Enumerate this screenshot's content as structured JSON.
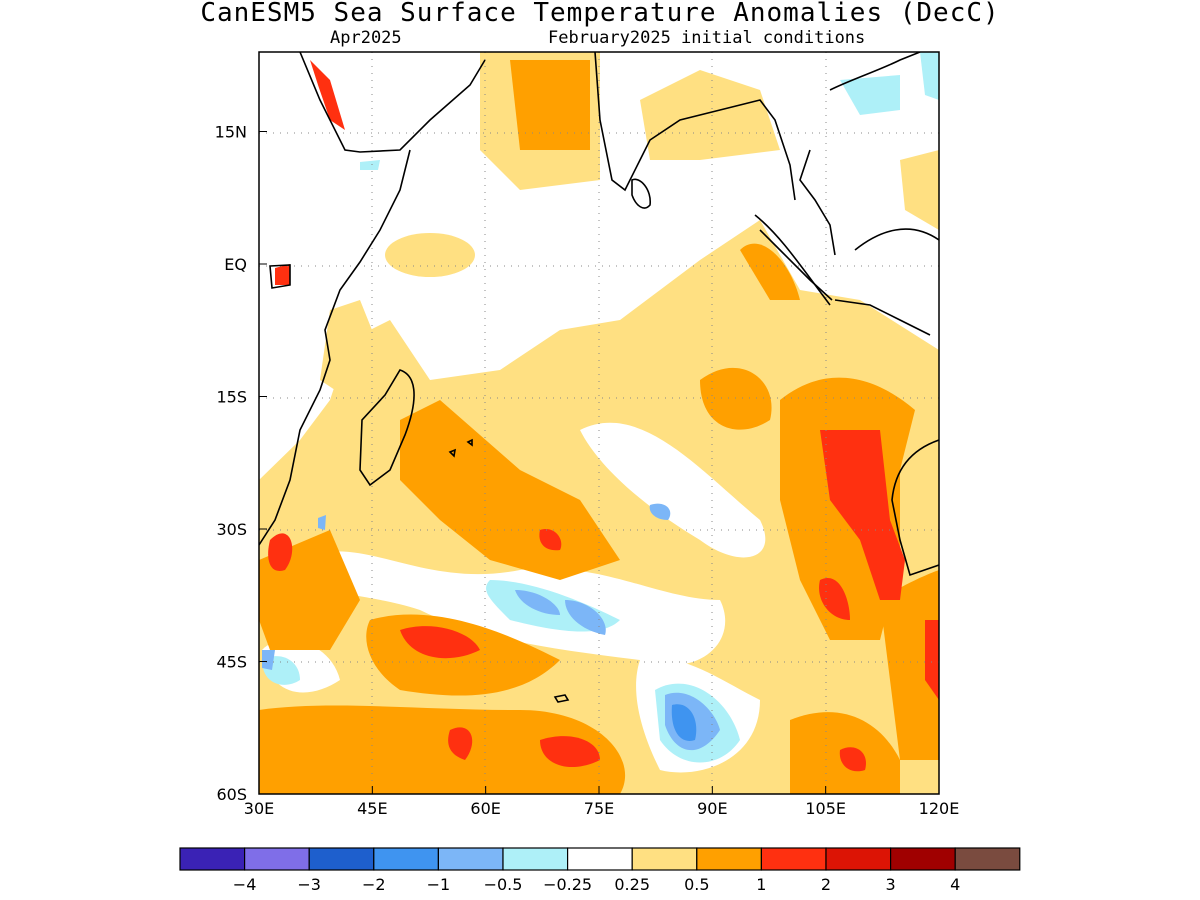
{
  "title": "CanESM5 Sea Surface Temperature Anomalies (DecC)",
  "subtitle_left": "Apr2025",
  "subtitle_right": "February2025 initial conditions",
  "map": {
    "lon_range": [
      30,
      120
    ],
    "lat_range": [
      -60,
      24
    ],
    "lon_ticks": [
      "30E",
      "45E",
      "60E",
      "75E",
      "90E",
      "105E",
      "120E"
    ],
    "lat_ticks": [
      "15N",
      "EQ",
      "15S",
      "30S",
      "45S",
      "60S"
    ],
    "grid": "dotted"
  },
  "colorbar": {
    "colors": [
      "#3a22b5",
      "#7f6ee8",
      "#1e5fcd",
      "#3f94f0",
      "#7cb6f7",
      "#aef0f8",
      "#ffffff",
      "#ffe082",
      "#ffa000",
      "#ff3010",
      "#dc1405",
      "#a00000",
      "#7a4b3f"
    ],
    "labels": [
      "-4",
      "-3",
      "-2",
      "-1",
      "-0.5",
      "-0.25",
      "0.25",
      "0.5",
      "1",
      "2",
      "3",
      "4"
    ]
  },
  "anomaly_regions": [
    {
      "name": "south-indian-warm-band",
      "level": "1"
    },
    {
      "name": "west-australia-hotspot",
      "level": "2"
    },
    {
      "name": "southern-cold-patch",
      "level": "-1"
    }
  ]
}
